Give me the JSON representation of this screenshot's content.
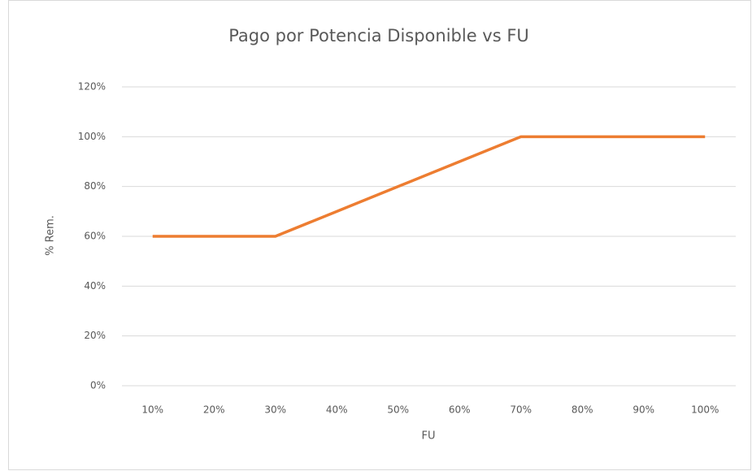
{
  "chart_data": {
    "type": "line",
    "title": "Pago por Potencia Disponible vs FU",
    "x_label": "FU",
    "y_label": "% Rem.",
    "categories": [
      "10%",
      "20%",
      "30%",
      "40%",
      "50%",
      "60%",
      "70%",
      "80%",
      "90%",
      "100%"
    ],
    "values": [
      60,
      60,
      60,
      70,
      80,
      90,
      100,
      100,
      100,
      100
    ],
    "color": "#ed7d31",
    "ylim": [
      0,
      120
    ],
    "yticks": [
      {
        "value": 0,
        "label": "0%"
      },
      {
        "value": 20,
        "label": "20%"
      },
      {
        "value": 40,
        "label": "40%"
      },
      {
        "value": 60,
        "label": "60%"
      },
      {
        "value": 80,
        "label": "80%"
      },
      {
        "value": 100,
        "label": "100%"
      },
      {
        "value": 120,
        "label": "120%"
      }
    ],
    "grid": true
  }
}
